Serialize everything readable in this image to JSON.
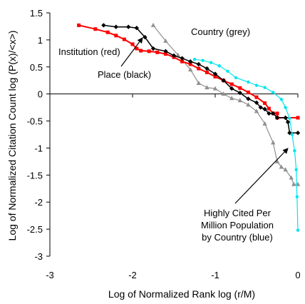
{
  "chart_data": {
    "type": "line",
    "title": "",
    "xlabel": "Log of Normalized Rank   log (r/M)",
    "ylabel": "Log of Normalized Citation Count   log (P(x)/<x>)",
    "xlim": [
      -3,
      0
    ],
    "ylim": [
      -3,
      1.5
    ],
    "xticks": [
      -3,
      -2,
      -1,
      0
    ],
    "yticks": [
      -3,
      -2.5,
      -2,
      -1.5,
      -1,
      -0.5,
      0,
      0.5,
      1,
      1.5
    ],
    "xtick_labels": [
      "-3",
      "-2",
      "-1",
      "0"
    ],
    "ytick_labels": [
      "-3",
      "-2.5",
      "-2",
      "-1.5",
      "-1",
      "-0.5",
      "0",
      "0.5",
      "1",
      "1.5"
    ],
    "grid": false,
    "legend": "none",
    "series": [
      {
        "color": "#ff0000",
        "marker": "square",
        "line_width": 2,
        "points": [
          [
            -2.65,
            1.27
          ],
          [
            -2.45,
            1.2
          ],
          [
            -2.3,
            1.14
          ],
          [
            -2.2,
            1.08
          ],
          [
            -2.1,
            1.01
          ],
          [
            -2.0,
            0.92
          ],
          [
            -1.95,
            0.84
          ],
          [
            -1.9,
            0.8
          ],
          [
            -1.8,
            0.79
          ],
          [
            -1.7,
            0.77
          ],
          [
            -1.6,
            0.74
          ],
          [
            -1.5,
            0.68
          ],
          [
            -1.4,
            0.6
          ],
          [
            -1.3,
            0.55
          ],
          [
            -1.2,
            0.47
          ],
          [
            -1.1,
            0.4
          ],
          [
            -1.0,
            0.32
          ],
          [
            -0.9,
            0.25
          ],
          [
            -0.8,
            0.18
          ],
          [
            -0.7,
            0.11
          ],
          [
            -0.6,
            0.03
          ],
          [
            -0.5,
            -0.06
          ],
          [
            -0.4,
            -0.17
          ],
          [
            -0.35,
            -0.27
          ],
          [
            -0.3,
            -0.36
          ],
          [
            -0.25,
            -0.36
          ],
          [
            -0.25,
            -0.44
          ],
          [
            0,
            -0.44
          ]
        ]
      },
      {
        "color": "#000000",
        "marker": "diamond",
        "line_width": 1.5,
        "points": [
          [
            -2.35,
            1.27
          ],
          [
            -2.2,
            1.24
          ],
          [
            -2.05,
            1.24
          ],
          [
            -1.95,
            1.22
          ],
          [
            -1.85,
            1.05
          ],
          [
            -1.75,
            0.84
          ],
          [
            -1.6,
            0.79
          ],
          [
            -1.5,
            0.71
          ],
          [
            -1.4,
            0.66
          ],
          [
            -1.3,
            0.6
          ],
          [
            -1.2,
            0.55
          ],
          [
            -1.1,
            0.47
          ],
          [
            -1.0,
            0.37
          ],
          [
            -0.9,
            0.25
          ],
          [
            -0.8,
            0.1
          ],
          [
            -0.7,
            0.02
          ],
          [
            -0.6,
            -0.09
          ],
          [
            -0.5,
            -0.16
          ],
          [
            -0.45,
            -0.25
          ],
          [
            -0.4,
            -0.28
          ],
          [
            -0.35,
            -0.36
          ],
          [
            -0.3,
            -0.36
          ],
          [
            -0.25,
            -0.44
          ],
          [
            -0.15,
            -0.44
          ],
          [
            -0.12,
            -0.52
          ],
          [
            -0.1,
            -0.72
          ],
          [
            0,
            -0.72
          ]
        ]
      },
      {
        "color": "#00e5ee",
        "marker": "circle",
        "line_width": 1.2,
        "points": [
          [
            -1.25,
            0.64
          ],
          [
            -1.15,
            0.62
          ],
          [
            -1.05,
            0.58
          ],
          [
            -0.95,
            0.52
          ],
          [
            -0.85,
            0.42
          ],
          [
            -0.75,
            0.3
          ],
          [
            -0.6,
            0.22
          ],
          [
            -0.5,
            0.16
          ],
          [
            -0.4,
            0.12
          ],
          [
            -0.3,
            0.03
          ],
          [
            -0.2,
            -0.1
          ],
          [
            -0.15,
            -0.25
          ],
          [
            -0.1,
            -0.45
          ],
          [
            -0.07,
            -0.75
          ],
          [
            -0.04,
            -1.05
          ],
          [
            -0.02,
            -1.4
          ],
          [
            -0.01,
            -1.9
          ],
          [
            0,
            -2.52
          ]
        ]
      },
      {
        "color": "#909090",
        "marker": "triangle",
        "line_width": 1.2,
        "points": [
          [
            -1.75,
            1.27
          ],
          [
            -1.6,
            0.98
          ],
          [
            -1.45,
            0.72
          ],
          [
            -1.3,
            0.45
          ],
          [
            -1.2,
            0.2
          ],
          [
            -1.1,
            0.12
          ],
          [
            -1.0,
            0.1
          ],
          [
            -0.9,
            0.0
          ],
          [
            -0.8,
            -0.08
          ],
          [
            -0.7,
            -0.12
          ],
          [
            -0.6,
            -0.2
          ],
          [
            -0.5,
            -0.32
          ],
          [
            -0.4,
            -0.55
          ],
          [
            -0.3,
            -0.9
          ],
          [
            -0.25,
            -1.25
          ],
          [
            -0.2,
            -1.35
          ],
          [
            -0.15,
            -1.4
          ],
          [
            -0.08,
            -1.55
          ],
          [
            -0.05,
            -1.67
          ],
          [
            0,
            -1.67
          ]
        ]
      }
    ],
    "annotations": [
      {
        "text": "Institution (red)"
      },
      {
        "text": "Place (black)"
      },
      {
        "text": "Country (grey)"
      },
      {
        "lines": [
          "Highly Cited Per",
          "Million Population",
          "by Country (blue)"
        ]
      }
    ]
  }
}
